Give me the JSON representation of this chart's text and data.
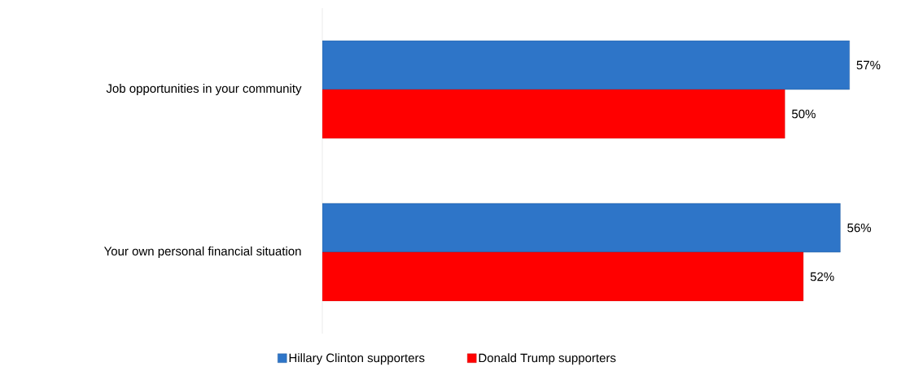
{
  "chart_data": {
    "type": "bar",
    "orientation": "horizontal",
    "categories": [
      "Job opportunities in your community",
      "Your own personal financial situation"
    ],
    "series": [
      {
        "name": "Hillary Clinton supporters",
        "color": "#2e75c8",
        "values": [
          57,
          56
        ],
        "value_labels": [
          "57%",
          "56%"
        ]
      },
      {
        "name": "Donald Trump supporters",
        "color": "#ff0000",
        "values": [
          50,
          52
        ],
        "value_labels": [
          "50%",
          "52%"
        ]
      }
    ],
    "legend": "bottom"
  }
}
